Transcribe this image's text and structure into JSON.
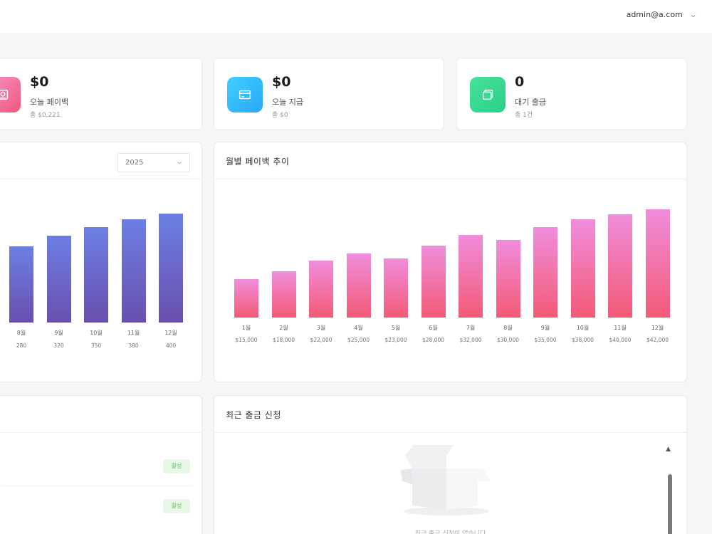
{
  "header": {
    "user_email": "admin@a.com",
    "chevron_icon": "chevron-down-icon"
  },
  "stats": [
    {
      "value": "$0",
      "label": "오늘 페이백",
      "sub": "총 $0,221",
      "icon": "payback-icon",
      "color": "#f5577a"
    },
    {
      "value": "$0",
      "label": "오늘 지급",
      "sub": "총 $0",
      "icon": "card-icon",
      "color": "#29a7f5"
    },
    {
      "value": "0",
      "label": "대기 출금",
      "sub": "총 1건",
      "icon": "wallet-icon",
      "color": "#2ccf86"
    }
  ],
  "left_chart_card": {
    "year_select": "2025",
    "chart_data": {
      "type": "bar",
      "categories": [
        "8월",
        "9월",
        "10월",
        "11월",
        "12월"
      ],
      "values": [
        280,
        320,
        350,
        380,
        400
      ],
      "value_labels": [
        "280",
        "320",
        "350",
        "380",
        "400"
      ],
      "color": "#6a6fd8"
    }
  },
  "monthly_card": {
    "title": "월별 페이백 추이",
    "chart_data": {
      "type": "bar",
      "categories": [
        "1월",
        "2월",
        "3월",
        "4월",
        "5월",
        "6월",
        "7월",
        "8월",
        "9월",
        "10월",
        "11월",
        "12월"
      ],
      "values": [
        15000,
        18000,
        22000,
        25000,
        23000,
        28000,
        32000,
        30000,
        35000,
        38000,
        40000,
        42000
      ],
      "value_labels": [
        "$15,000",
        "$18,000",
        "$22,000",
        "$25,000",
        "$23,000",
        "$28,000",
        "$32,000",
        "$30,000",
        "$35,000",
        "$38,000",
        "$40,000",
        "$42,000"
      ],
      "color": "#f06aa0"
    }
  },
  "left_bottom_card": {
    "badges": [
      "활성",
      "활성"
    ]
  },
  "withdraw_card": {
    "title": "최근 출금 신청",
    "empty_text": "최근 출금 신청이 없습니다",
    "empty_icon": "empty-box-icon"
  }
}
